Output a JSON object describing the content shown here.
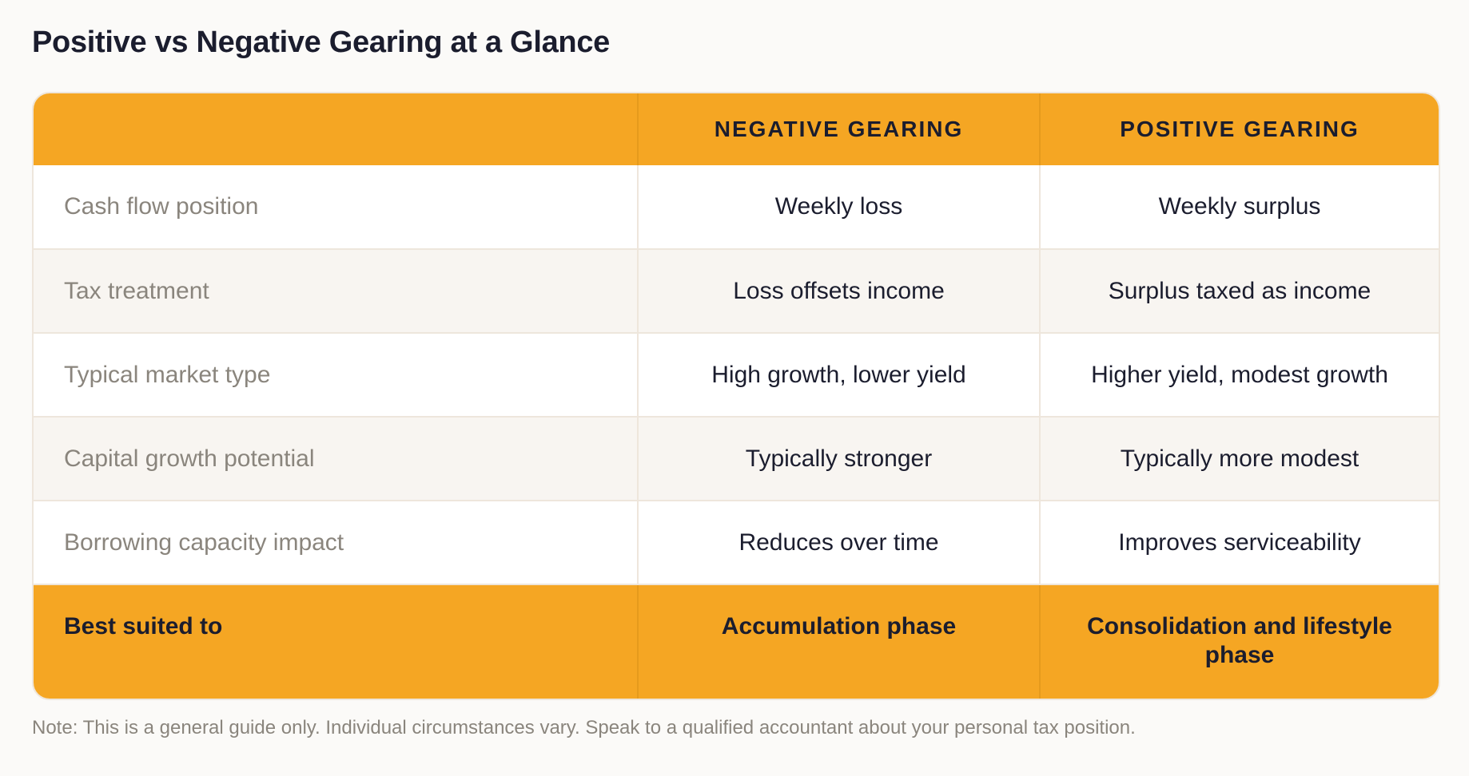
{
  "title": "Positive vs Negative Gearing at a Glance",
  "table": {
    "headers": [
      "",
      "NEGATIVE GEARING",
      "POSITIVE GEARING"
    ],
    "rows": [
      {
        "label": "Cash flow position",
        "negative": "Weekly loss",
        "positive": "Weekly surplus"
      },
      {
        "label": "Tax treatment",
        "negative": "Loss offsets income",
        "positive": "Surplus taxed as income"
      },
      {
        "label": "Typical market type",
        "negative": "High growth, lower yield",
        "positive": "Higher yield, modest growth"
      },
      {
        "label": "Capital growth potential",
        "negative": "Typically stronger",
        "positive": "Typically more modest"
      },
      {
        "label": "Borrowing capacity impact",
        "negative": "Reduces over time",
        "positive": "Improves serviceability"
      }
    ],
    "footer": {
      "label": "Best suited to",
      "negative": "Accumulation phase",
      "positive": "Consolidation and lifestyle phase"
    }
  },
  "note": "Note: This is a general guide only. Individual circumstances vary. Speak to a qualified accountant about your personal tax position.",
  "colors": {
    "accent": "#f5a623",
    "text_dark": "#1b1d2e",
    "text_muted": "#8a857d",
    "row_alt": "#f8f5f1",
    "border": "#eee6dc"
  }
}
